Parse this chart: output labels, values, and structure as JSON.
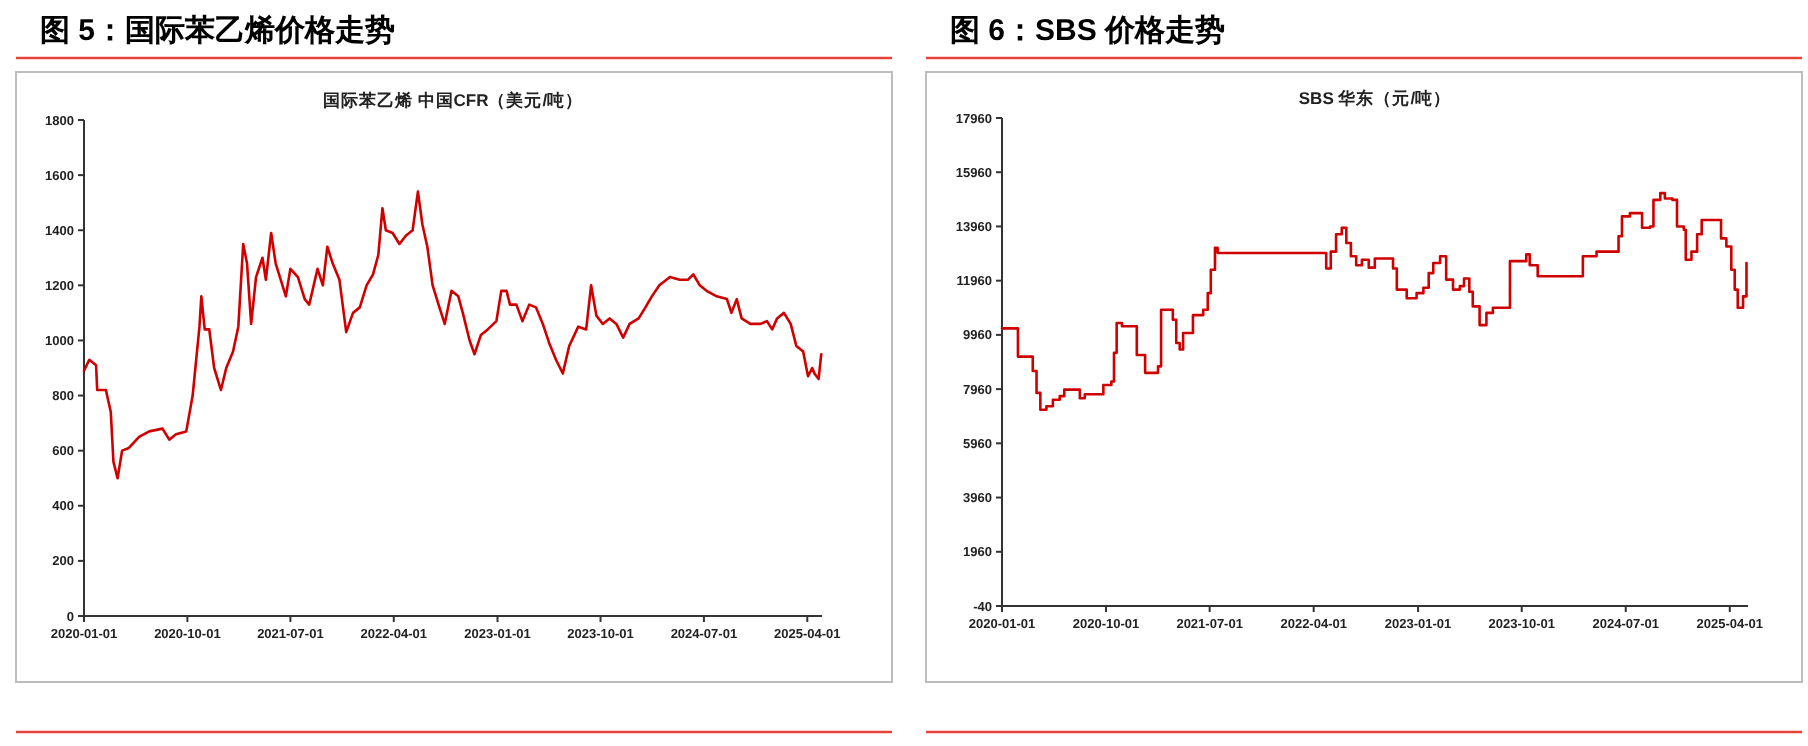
{
  "chart_data": [
    {
      "type": "line",
      "title": "图 5：国际苯乙烯价格走势",
      "subtitle": "国际苯乙烯 中国CFR（美元/吨）",
      "grid": false,
      "marker": "none",
      "line_style": "solid",
      "xlim": [
        "2020-01-01",
        "2025-05-10"
      ],
      "xticks": [
        "2020-01-01",
        "2020-10-01",
        "2021-07-01",
        "2022-04-01",
        "2023-01-01",
        "2023-10-01",
        "2024-07-01",
        "2025-04-01"
      ],
      "ylim": [
        0,
        1800
      ],
      "yticks": [
        0,
        200,
        400,
        600,
        800,
        1000,
        1200,
        1400,
        1600,
        1800
      ],
      "series": [
        {
          "color": "#d00000",
          "x": [
            "2020-01-01",
            "2020-01-15",
            "2020-02-02",
            "2020-02-05",
            "2020-02-28",
            "2020-03-12",
            "2020-03-19",
            "2020-03-30",
            "2020-04-11",
            "2020-04-29",
            "2020-05-26",
            "2020-06-22",
            "2020-07-27",
            "2020-08-14",
            "2020-09-01",
            "2020-09-28",
            "2020-10-15",
            "2020-11-02",
            "2020-11-07",
            "2020-11-16",
            "2020-11-28",
            "2020-12-11",
            "2020-12-29",
            "2021-01-12",
            "2021-01-30",
            "2021-02-13",
            "2021-02-26",
            "2021-03-08",
            "2021-03-19",
            "2021-04-01",
            "2021-04-18",
            "2021-04-27",
            "2021-05-11",
            "2021-05-23",
            "2021-06-10",
            "2021-06-19",
            "2021-07-01",
            "2021-07-21",
            "2021-08-08",
            "2021-08-20",
            "2021-09-11",
            "2021-09-25",
            "2021-10-07",
            "2021-10-21",
            "2021-11-08",
            "2021-11-26",
            "2021-12-14",
            "2022-01-01",
            "2022-01-19",
            "2022-02-05",
            "2022-02-19",
            "2022-03-02",
            "2022-03-11",
            "2022-03-29",
            "2022-04-16",
            "2022-05-03",
            "2022-05-21",
            "2022-06-04",
            "2022-06-16",
            "2022-06-29",
            "2022-07-13",
            "2022-07-31",
            "2022-08-14",
            "2022-09-01",
            "2022-09-19",
            "2022-10-01",
            "2022-10-19",
            "2022-11-01",
            "2022-11-18",
            "2022-12-06",
            "2022-12-29",
            "2023-01-11",
            "2023-01-25",
            "2023-02-03",
            "2023-02-20",
            "2023-03-08",
            "2023-03-26",
            "2023-04-13",
            "2023-05-01",
            "2023-05-18",
            "2023-06-05",
            "2023-06-23",
            "2023-07-10",
            "2023-08-03",
            "2023-08-24",
            "2023-09-06",
            "2023-09-20",
            "2023-10-07",
            "2023-10-25",
            "2023-11-12",
            "2023-11-30",
            "2023-12-17",
            "2024-01-10",
            "2024-01-28",
            "2024-02-14",
            "2024-03-05",
            "2024-04-02",
            "2024-04-28",
            "2024-05-19",
            "2024-06-03",
            "2024-06-20",
            "2024-07-08",
            "2024-08-04",
            "2024-08-31",
            "2024-09-12",
            "2024-09-26",
            "2024-10-09",
            "2024-11-01",
            "2024-11-28",
            "2024-12-15",
            "2024-12-29",
            "2025-01-11",
            "2025-01-29",
            "2025-02-16",
            "2025-03-03",
            "2025-03-21",
            "2025-04-03",
            "2025-04-14",
            "2025-04-20",
            "2025-05-01",
            "2025-05-08"
          ],
          "values": [
            890,
            930,
            910,
            820,
            820,
            740,
            560,
            500,
            600,
            610,
            650,
            670,
            680,
            640,
            660,
            670,
            800,
            1050,
            1160,
            1040,
            1040,
            900,
            820,
            900,
            960,
            1050,
            1350,
            1280,
            1060,
            1230,
            1300,
            1220,
            1390,
            1280,
            1200,
            1160,
            1260,
            1230,
            1150,
            1130,
            1260,
            1200,
            1340,
            1280,
            1220,
            1030,
            1100,
            1120,
            1200,
            1240,
            1310,
            1480,
            1400,
            1390,
            1350,
            1380,
            1400,
            1540,
            1420,
            1340,
            1200,
            1120,
            1060,
            1180,
            1160,
            1100,
            1000,
            950,
            1020,
            1040,
            1070,
            1180,
            1180,
            1130,
            1130,
            1070,
            1130,
            1120,
            1060,
            990,
            930,
            880,
            980,
            1050,
            1040,
            1200,
            1090,
            1060,
            1080,
            1060,
            1010,
            1060,
            1080,
            1120,
            1160,
            1200,
            1230,
            1220,
            1220,
            1240,
            1200,
            1180,
            1160,
            1150,
            1100,
            1150,
            1080,
            1060,
            1060,
            1070,
            1040,
            1080,
            1100,
            1060,
            980,
            960,
            870,
            900,
            880,
            860,
            950
          ]
        }
      ]
    },
    {
      "type": "line",
      "title": "图 6：SBS 价格走势",
      "subtitle": "SBS 华东（元/吨）",
      "grid": false,
      "marker": "none",
      "line_style": "solid",
      "xlim": [
        "2020-01-01",
        "2025-05-19"
      ],
      "xticks": [
        "2020-01-01",
        "2020-10-01",
        "2021-07-01",
        "2022-04-01",
        "2023-01-01",
        "2023-10-01",
        "2024-07-01",
        "2025-04-01"
      ],
      "ylim": [
        -40,
        17960
      ],
      "yticks": [
        -40,
        1960,
        3960,
        5960,
        7960,
        9960,
        11960,
        13960,
        15960,
        17960
      ],
      "series": [
        {
          "type": "step",
          "color": "#d00000",
          "x": [
            "2020-01-01",
            "2020-02-08",
            "2020-02-12",
            "2020-03-13",
            "2020-03-22",
            "2020-04-01",
            "2020-04-11",
            "2020-04-27",
            "2020-05-14",
            "2020-06-01",
            "2020-06-13",
            "2020-07-06",
            "2020-07-24",
            "2020-08-06",
            "2020-09-06",
            "2020-09-24",
            "2020-10-15",
            "2020-10-22",
            "2020-10-29",
            "2020-11-12",
            "2020-12-03",
            "2020-12-21",
            "2021-01-12",
            "2021-02-15",
            "2021-02-23",
            "2021-03-08",
            "2021-03-26",
            "2021-04-04",
            "2021-04-13",
            "2021-04-22",
            "2021-05-18",
            "2021-06-14",
            "2021-06-26",
            "2021-07-04",
            "2021-07-15",
            "2021-07-22",
            "2022-04-16",
            "2022-05-04",
            "2022-05-16",
            "2022-05-30",
            "2022-06-14",
            "2022-06-26",
            "2022-07-08",
            "2022-07-22",
            "2022-08-06",
            "2022-08-24",
            "2022-09-09",
            "2022-10-18",
            "2022-10-27",
            "2022-11-06",
            "2022-12-02",
            "2022-12-28",
            "2023-01-15",
            "2023-01-29",
            "2023-02-10",
            "2023-02-28",
            "2023-03-16",
            "2023-04-03",
            "2023-04-21",
            "2023-05-02",
            "2023-05-16",
            "2023-05-25",
            "2023-06-12",
            "2023-06-30",
            "2023-07-17",
            "2023-08-22",
            "2023-08-31",
            "2023-10-05",
            "2023-10-13",
            "2023-10-22",
            "2023-11-12",
            "2024-03-02",
            "2024-03-10",
            "2024-04-15",
            "2024-06-03",
            "2024-06-12",
            "2024-06-21",
            "2024-07-12",
            "2024-08-08",
            "2024-08-13",
            "2024-09-03",
            "2024-09-12",
            "2024-09-30",
            "2024-10-12",
            "2024-11-01",
            "2024-11-13",
            "2024-12-01",
            "2024-12-06",
            "2024-12-21",
            "2025-01-05",
            "2025-01-17",
            "2025-03-01",
            "2025-03-09",
            "2025-03-23",
            "2025-04-05",
            "2025-04-14",
            "2025-04-22",
            "2025-05-06",
            "2025-05-15"
          ],
          "values": [
            10200,
            10200,
            9160,
            9160,
            8630,
            7820,
            7200,
            7330,
            7570,
            7700,
            7940,
            7940,
            7620,
            7770,
            7770,
            8110,
            8240,
            9300,
            10400,
            10280,
            10280,
            9220,
            8560,
            8800,
            10890,
            10890,
            10520,
            9660,
            9420,
            10030,
            10690,
            10890,
            11500,
            12360,
            13170,
            12980,
            12980,
            12410,
            13030,
            13670,
            13910,
            13350,
            12860,
            12530,
            12730,
            12440,
            12780,
            12780,
            12410,
            11630,
            11310,
            11500,
            11700,
            12240,
            12610,
            12860,
            12000,
            11630,
            11760,
            12040,
            11550,
            11010,
            10320,
            10770,
            10960,
            10960,
            12680,
            12680,
            12930,
            12530,
            12120,
            12120,
            12860,
            13030,
            13030,
            13600,
            14330,
            14450,
            14450,
            13910,
            13960,
            14940,
            15190,
            14990,
            14940,
            13960,
            13840,
            12730,
            13030,
            13670,
            14200,
            14200,
            13520,
            13220,
            12360,
            11630,
            10960,
            11380,
            12610
          ]
        }
      ]
    }
  ]
}
